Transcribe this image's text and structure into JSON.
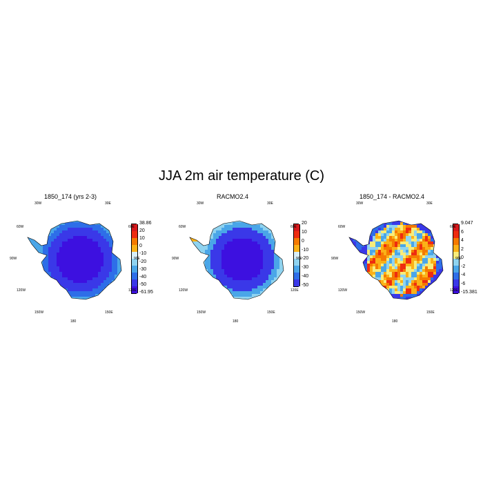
{
  "title": "JJA 2m air temperature (C)",
  "geo_labels": {
    "w30": "30W",
    "e30": "30E",
    "w60": "60W",
    "e60": "60E",
    "w90": "90W",
    "e90": "90E",
    "w120": "120W",
    "e120": "120E",
    "w150": "150W",
    "e150": "150E",
    "d180": "180"
  },
  "panels": [
    {
      "title": "1850_174 (yrs 2-3)",
      "field": "model",
      "colorbar": {
        "labels": [
          "38.86",
          "20",
          "10",
          "0",
          "-10",
          "-20",
          "-30",
          "-40",
          "-50",
          "-61.95"
        ],
        "colors": [
          "#d7191c",
          "#ee2c10",
          "#f57a00",
          "#fbb117",
          "#d7eef8",
          "#8fd3f0",
          "#4aa6e8",
          "#2e6ee8",
          "#3a38e8",
          "#3d10e0"
        ]
      }
    },
    {
      "title": "RACMO2.4",
      "field": "obs",
      "colorbar": {
        "labels": [
          "20",
          "10",
          "0",
          "-10",
          "-20",
          "-30",
          "-40",
          "-50"
        ],
        "colors": [
          "#d7191c",
          "#ee2c10",
          "#f57a00",
          "#fbb117",
          "#d7eef8",
          "#8fd3f0",
          "#4aa6e8",
          "#2e6ee8",
          "#3a38e8"
        ]
      }
    },
    {
      "title": "1850_174 - RACMO2.4",
      "field": "diff",
      "colorbar": {
        "labels": [
          "9.047",
          "6",
          "4",
          "2",
          "0",
          "-2",
          "-4",
          "-6",
          "-15.381"
        ],
        "colors": [
          "#d7191c",
          "#ee2c10",
          "#f57a00",
          "#fbb117",
          "#f8ec7a",
          "#8fd3f0",
          "#4aa6e8",
          "#2e6ee8",
          "#3a38e8",
          "#3d10e0"
        ]
      }
    }
  ]
}
